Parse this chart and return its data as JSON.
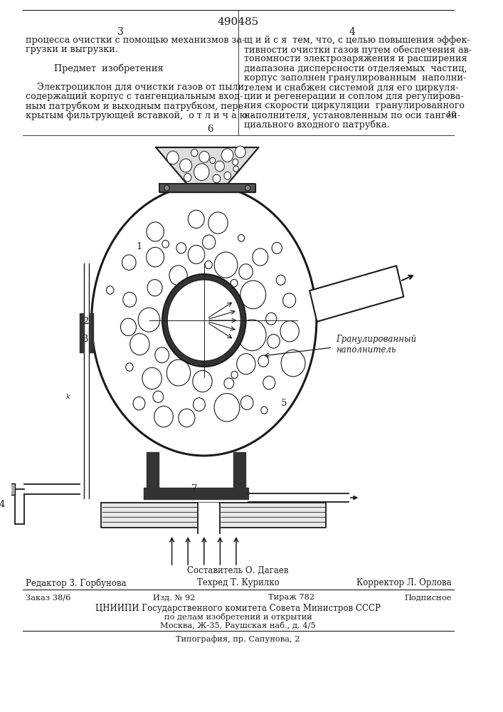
{
  "patent_number": "490485",
  "bg_color": "#ffffff",
  "text_color": "#1a1a1a",
  "col1_text": [
    "процесса очистки с помощью механизмов за-",
    "грузки и выгрузки.",
    "",
    "Предмет  изобретения",
    "",
    "    Электроциклон для очистки газов от пыли,",
    "содержащий корпус с тангенциальным вход-",
    "ным патрубком и выходным патрубком, пере-",
    "крытым фильтрующей вставкой,  о т л и ч а ю -"
  ],
  "col2_text": [
    "щ и й с я  тем, что, с целью повышения эффек-",
    "тивности очистки газов путем обеспечения ав-",
    "тономности электрозаряжения и расширения",
    "диапазона дисперсности отделяемых  частиц,",
    "корпус заполнен гранулированным  наполни-",
    "телем и снабжен системой для его циркуля-",
    "ции и регенерации и соплом для регулирова-",
    "ния скорости циркуляции  гранулированного",
    "наполнителя, установленным по оси танген-",
    "циального входного патрубка."
  ],
  "col2_linenum": "10",
  "footer_line1": "Составитель О. Дагаев",
  "footer_line2_left": "Редактор З. Горбунова",
  "footer_line2_mid": "Техред Т. Курилко",
  "footer_line2_right": "Корректор Л. Орлова",
  "footer_line3_1": "Заказ 38/6",
  "footer_line3_2": "Изд. № 92",
  "footer_line3_3": "Тираж 782",
  "footer_line3_4": "Подписное",
  "footer_line4": "ЦНИИПИ Государственного комитета Совета Министров СССР",
  "footer_line5": "по делам изобретений и открытий",
  "footer_line6": "Москва, Ж-35, Раушская наб., д. 4/5",
  "footer_line7": "Типография, пр. Сапунова, 2",
  "label_granulirovanny": "Гранулированный",
  "label_napolnitel": "наполнитель",
  "granule_seed_body": 42,
  "granule_seed_hopper": 7
}
